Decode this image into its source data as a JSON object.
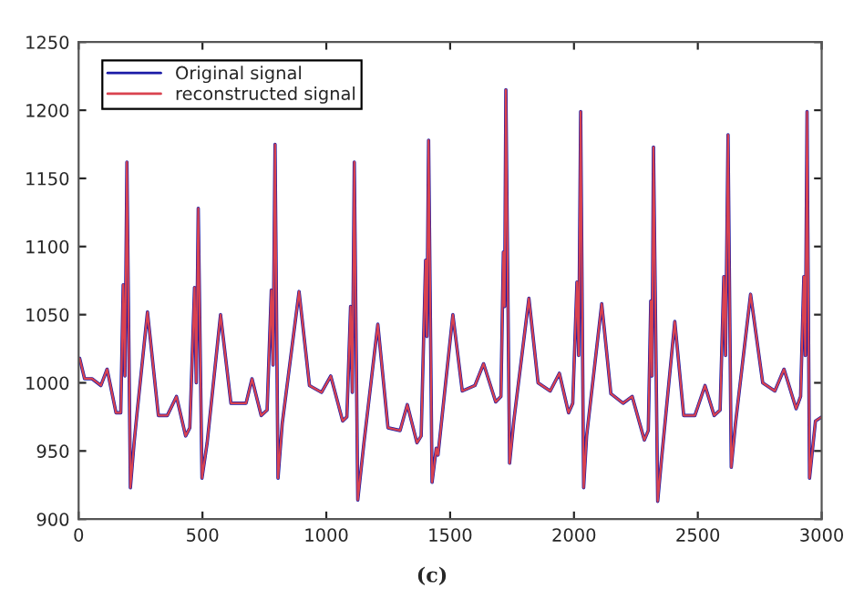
{
  "chart_data": {
    "type": "line",
    "annotations": [
      "(c)"
    ],
    "x": [
      4,
      24,
      54,
      90,
      115,
      151,
      170,
      180,
      187,
      195,
      209,
      224,
      236,
      278,
      322,
      358,
      395,
      432,
      449,
      468,
      475,
      483,
      498,
      519,
      573,
      615,
      676,
      700,
      737,
      761,
      778,
      785,
      793,
      805,
      822,
      890,
      932,
      981,
      1018,
      1066,
      1083,
      1098,
      1105,
      1113,
      1127,
      1152,
      1208,
      1249,
      1298,
      1327,
      1366,
      1383,
      1401,
      1406,
      1413,
      1427,
      1444,
      1451,
      1511,
      1549,
      1600,
      1635,
      1684,
      1705,
      1715,
      1720,
      1725,
      1740,
      1757,
      1818,
      1855,
      1904,
      1941,
      1978,
      1995,
      2012,
      2019,
      2027,
      2039,
      2051,
      2112,
      2149,
      2198,
      2235,
      2284,
      2300,
      2310,
      2315,
      2321,
      2338,
      2353,
      2407,
      2443,
      2488,
      2529,
      2566,
      2590,
      2605,
      2612,
      2622,
      2635,
      2652,
      2713,
      2762,
      2811,
      2848,
      2897,
      2915,
      2928,
      2934,
      2941,
      2951,
      2975,
      3000
    ],
    "series": [
      {
        "name": "Original signal",
        "color": "#1a1aa6",
        "values": [
          1018,
          1003,
          1003,
          998,
          1010,
          978,
          978,
          1072,
          1005,
          1162,
          923,
          956,
          978,
          1052,
          976,
          976,
          990,
          961,
          967,
          1070,
          1000,
          1128,
          930,
          956,
          1050,
          985,
          985,
          1003,
          976,
          980,
          1068,
          1013,
          1175,
          930,
          970,
          1067,
          998,
          993,
          1005,
          972,
          975,
          1056,
          993,
          1162,
          914,
          956,
          1043,
          967,
          965,
          984,
          956,
          961,
          1090,
          1034,
          1178,
          927,
          952,
          947,
          1050,
          994,
          998,
          1014,
          986,
          990,
          1096,
          1056,
          1215,
          941,
          972,
          1062,
          1000,
          994,
          1007,
          978,
          985,
          1074,
          1020,
          1199,
          923,
          961,
          1058,
          992,
          985,
          990,
          958,
          965,
          1060,
          1005,
          1173,
          913,
          943,
          1045,
          976,
          976,
          998,
          976,
          980,
          1078,
          1020,
          1182,
          938,
          970,
          1065,
          1000,
          994,
          1010,
          981,
          990,
          1078,
          1020,
          1199,
          930,
          972,
          975
        ]
      },
      {
        "name": "reconstructed signal",
        "color": "#d9424f",
        "values": [
          1018,
          1003,
          1003,
          998,
          1010,
          978,
          978,
          1072,
          1005,
          1162,
          923,
          956,
          978,
          1052,
          976,
          976,
          990,
          961,
          967,
          1070,
          1000,
          1128,
          930,
          956,
          1050,
          985,
          985,
          1003,
          976,
          980,
          1068,
          1013,
          1175,
          930,
          970,
          1067,
          998,
          993,
          1005,
          972,
          975,
          1056,
          993,
          1162,
          914,
          956,
          1043,
          967,
          965,
          984,
          956,
          961,
          1090,
          1034,
          1178,
          927,
          952,
          947,
          1050,
          994,
          998,
          1014,
          986,
          990,
          1096,
          1056,
          1215,
          941,
          972,
          1062,
          1000,
          994,
          1007,
          978,
          985,
          1074,
          1020,
          1199,
          923,
          961,
          1058,
          992,
          985,
          990,
          958,
          965,
          1060,
          1005,
          1173,
          913,
          943,
          1045,
          976,
          976,
          998,
          976,
          980,
          1078,
          1020,
          1182,
          938,
          970,
          1065,
          1000,
          994,
          1010,
          981,
          990,
          1078,
          1020,
          1199,
          930,
          972,
          975
        ]
      }
    ],
    "xlim": [
      0,
      3000
    ],
    "xticks": [
      0,
      500,
      1000,
      1500,
      2000,
      2500,
      3000
    ],
    "ylim": [
      900,
      1250
    ],
    "yticks": [
      900,
      950,
      1000,
      1050,
      1100,
      1150,
      1200,
      1250
    ],
    "legend": "top left",
    "grid": false
  }
}
